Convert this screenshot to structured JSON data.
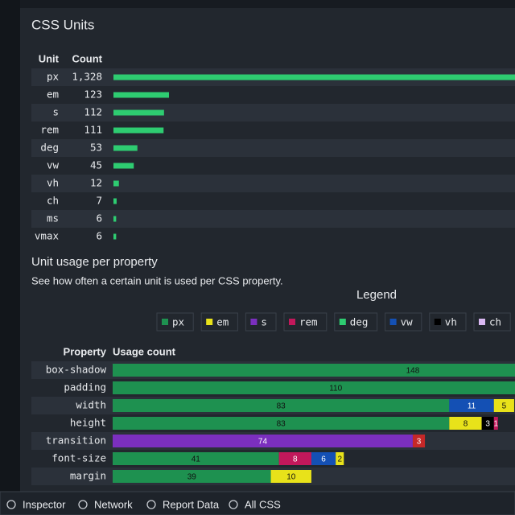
{
  "units": {
    "title": "CSS Units",
    "header": {
      "unit": "Unit",
      "count": "Count"
    },
    "rows": [
      {
        "unit": "px",
        "count": 1328,
        "count_label": "1,328"
      },
      {
        "unit": "em",
        "count": 123
      },
      {
        "unit": "s",
        "count": 112
      },
      {
        "unit": "rem",
        "count": 111
      },
      {
        "unit": "deg",
        "count": 53
      },
      {
        "unit": "vw",
        "count": 45
      },
      {
        "unit": "vh",
        "count": 12
      },
      {
        "unit": "ch",
        "count": 7
      },
      {
        "unit": "ms",
        "count": 6
      },
      {
        "unit": "vmax",
        "count": 6
      }
    ],
    "bar_color": "#2ecc71"
  },
  "usage": {
    "title": "Unit usage per property",
    "subtitle": "See how often a certain unit is used per CSS property.",
    "legend": {
      "title": "Legend",
      "items": [
        {
          "name": "px",
          "color": "#1e9150"
        },
        {
          "name": "em",
          "color": "#e8e21a"
        },
        {
          "name": "s",
          "color": "#7b2fbf"
        },
        {
          "name": "rem",
          "color": "#c2185b"
        },
        {
          "name": "deg",
          "color": "#2ecc71"
        },
        {
          "name": "vw",
          "color": "#1450b4"
        },
        {
          "name": "vh",
          "color": "#000000"
        },
        {
          "name": "ch",
          "color": "#d9b8f2"
        }
      ]
    },
    "header": {
      "property": "Property",
      "usage": "Usage count"
    },
    "rows": [
      {
        "property": "box-shadow",
        "segments": [
          {
            "value": 148,
            "color": "#1e9150"
          }
        ]
      },
      {
        "property": "padding",
        "segments": [
          {
            "value": 110,
            "color": "#1e9150"
          }
        ]
      },
      {
        "property": "width",
        "segments": [
          {
            "value": 83,
            "color": "#1e9150"
          },
          {
            "value": 11,
            "color": "#1450b4"
          },
          {
            "value": 5,
            "color": "#e8e21a"
          }
        ]
      },
      {
        "property": "height",
        "segments": [
          {
            "value": 83,
            "color": "#1e9150"
          },
          {
            "value": 8,
            "color": "#e8e21a"
          },
          {
            "value": 3,
            "color": "#000000"
          },
          {
            "value": 1,
            "color": "#c2185b"
          }
        ]
      },
      {
        "property": "transition",
        "segments": [
          {
            "value": 74,
            "color": "#7b2fbf"
          },
          {
            "value": 3,
            "color": "#c62828"
          }
        ]
      },
      {
        "property": "font-size",
        "segments": [
          {
            "value": 41,
            "color": "#1e9150"
          },
          {
            "value": 8,
            "color": "#c2185b"
          },
          {
            "value": 6,
            "color": "#1450b4"
          },
          {
            "value": 2,
            "color": "#e8e21a"
          }
        ]
      },
      {
        "property": "margin",
        "segments": [
          {
            "value": 39,
            "color": "#1e9150"
          },
          {
            "value": 10,
            "color": "#e8e21a"
          }
        ]
      }
    ]
  },
  "toolbar": {
    "items": [
      "Inspector",
      "Network",
      "Report Data",
      "All CSS"
    ]
  }
}
